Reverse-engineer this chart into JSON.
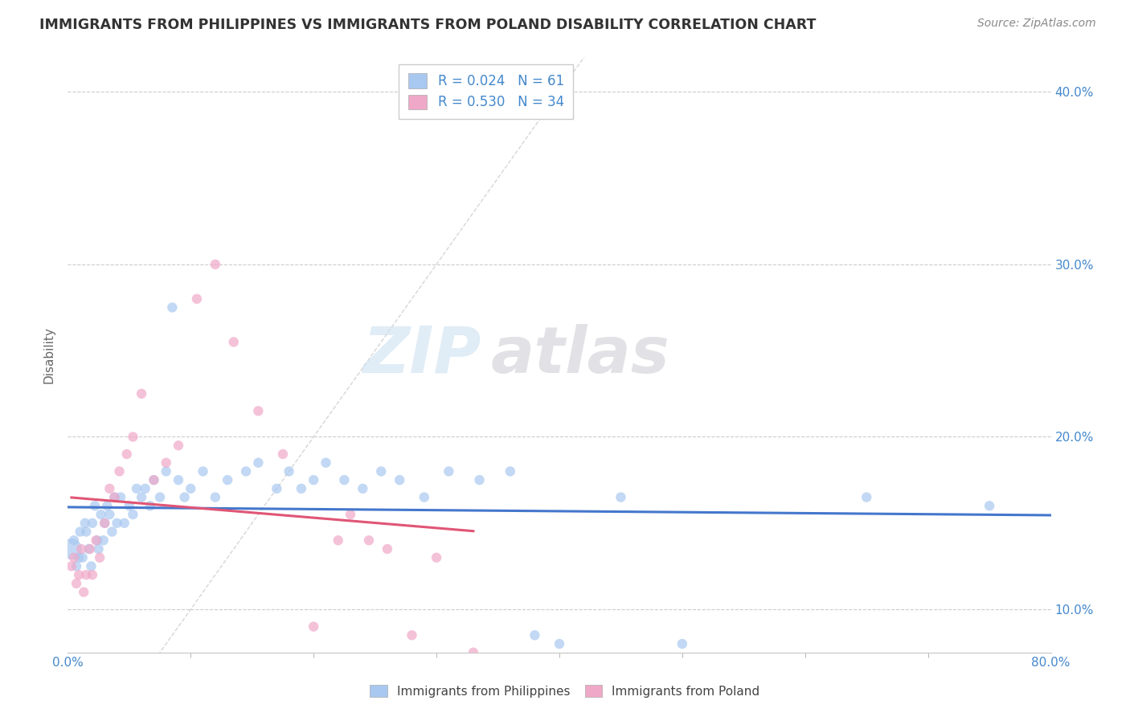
{
  "title": "IMMIGRANTS FROM PHILIPPINES VS IMMIGRANTS FROM POLAND DISABILITY CORRELATION CHART",
  "source": "Source: ZipAtlas.com",
  "ylabel": "Disability",
  "legend_1_label": "Immigrants from Philippines",
  "legend_1_r": "0.024",
  "legend_1_n": "61",
  "legend_2_label": "Immigrants from Poland",
  "legend_2_r": "0.530",
  "legend_2_n": "34",
  "color_philippines": "#a8c8f0",
  "color_poland": "#f0a8c8",
  "color_philippines_line": "#4477cc",
  "color_poland_line": "#e05575",
  "color_diagonal": "#cccccc",
  "watermark_zip": "ZIP",
  "watermark_atlas": "atlas",
  "xlim": [
    0,
    80
  ],
  "ylim": [
    7.5,
    42
  ],
  "philippines_x": [
    0.3,
    0.5,
    0.7,
    0.9,
    1.0,
    1.2,
    1.4,
    1.5,
    1.7,
    1.9,
    2.0,
    2.2,
    2.4,
    2.5,
    2.7,
    2.9,
    3.0,
    3.2,
    3.4,
    3.6,
    3.8,
    4.0,
    4.3,
    4.6,
    5.0,
    5.3,
    5.6,
    6.0,
    6.3,
    6.7,
    7.0,
    7.5,
    8.0,
    8.5,
    9.0,
    9.5,
    10.0,
    11.0,
    12.0,
    13.0,
    14.5,
    15.5,
    17.0,
    18.0,
    19.0,
    20.0,
    21.0,
    22.5,
    24.0,
    25.5,
    27.0,
    29.0,
    31.0,
    33.5,
    36.0,
    38.0,
    40.0,
    45.0,
    50.0,
    65.0,
    75.0
  ],
  "philippines_y": [
    13.5,
    14.0,
    12.5,
    13.0,
    14.5,
    13.0,
    15.0,
    14.5,
    13.5,
    12.5,
    15.0,
    16.0,
    14.0,
    13.5,
    15.5,
    14.0,
    15.0,
    16.0,
    15.5,
    14.5,
    16.5,
    15.0,
    16.5,
    15.0,
    16.0,
    15.5,
    17.0,
    16.5,
    17.0,
    16.0,
    17.5,
    16.5,
    18.0,
    27.5,
    17.5,
    16.5,
    17.0,
    18.0,
    16.5,
    17.5,
    18.0,
    18.5,
    17.0,
    18.0,
    17.0,
    17.5,
    18.5,
    17.5,
    17.0,
    18.0,
    17.5,
    16.5,
    18.0,
    17.5,
    18.0,
    8.5,
    8.0,
    16.5,
    8.0,
    16.5,
    16.0
  ],
  "philippines_sizes": [
    350,
    80,
    80,
    80,
    80,
    80,
    80,
    80,
    80,
    80,
    80,
    80,
    80,
    80,
    80,
    80,
    80,
    80,
    80,
    80,
    80,
    80,
    80,
    80,
    80,
    80,
    80,
    80,
    80,
    80,
    80,
    80,
    80,
    80,
    80,
    80,
    80,
    80,
    80,
    80,
    80,
    80,
    80,
    80,
    80,
    80,
    80,
    80,
    80,
    80,
    80,
    80,
    80,
    80,
    80,
    80,
    80,
    80,
    80,
    80,
    80
  ],
  "poland_x": [
    0.3,
    0.5,
    0.7,
    0.9,
    1.1,
    1.3,
    1.5,
    1.8,
    2.0,
    2.3,
    2.6,
    3.0,
    3.4,
    3.8,
    4.2,
    4.8,
    5.3,
    6.0,
    7.0,
    8.0,
    9.0,
    10.5,
    12.0,
    13.5,
    15.5,
    17.5,
    20.0,
    22.0,
    23.0,
    24.5,
    26.0,
    28.0,
    30.0,
    33.0
  ],
  "poland_y": [
    12.5,
    13.0,
    11.5,
    12.0,
    13.5,
    11.0,
    12.0,
    13.5,
    12.0,
    14.0,
    13.0,
    15.0,
    17.0,
    16.5,
    18.0,
    19.0,
    20.0,
    22.5,
    17.5,
    18.5,
    19.5,
    28.0,
    30.0,
    25.5,
    21.5,
    19.0,
    9.0,
    14.0,
    15.5,
    14.0,
    13.5,
    8.5,
    13.0,
    7.5
  ],
  "poland_sizes": [
    80,
    80,
    80,
    80,
    80,
    80,
    80,
    80,
    80,
    80,
    80,
    80,
    80,
    80,
    80,
    80,
    80,
    80,
    80,
    80,
    80,
    80,
    80,
    80,
    80,
    80,
    80,
    80,
    80,
    80,
    80,
    80,
    80,
    80
  ]
}
